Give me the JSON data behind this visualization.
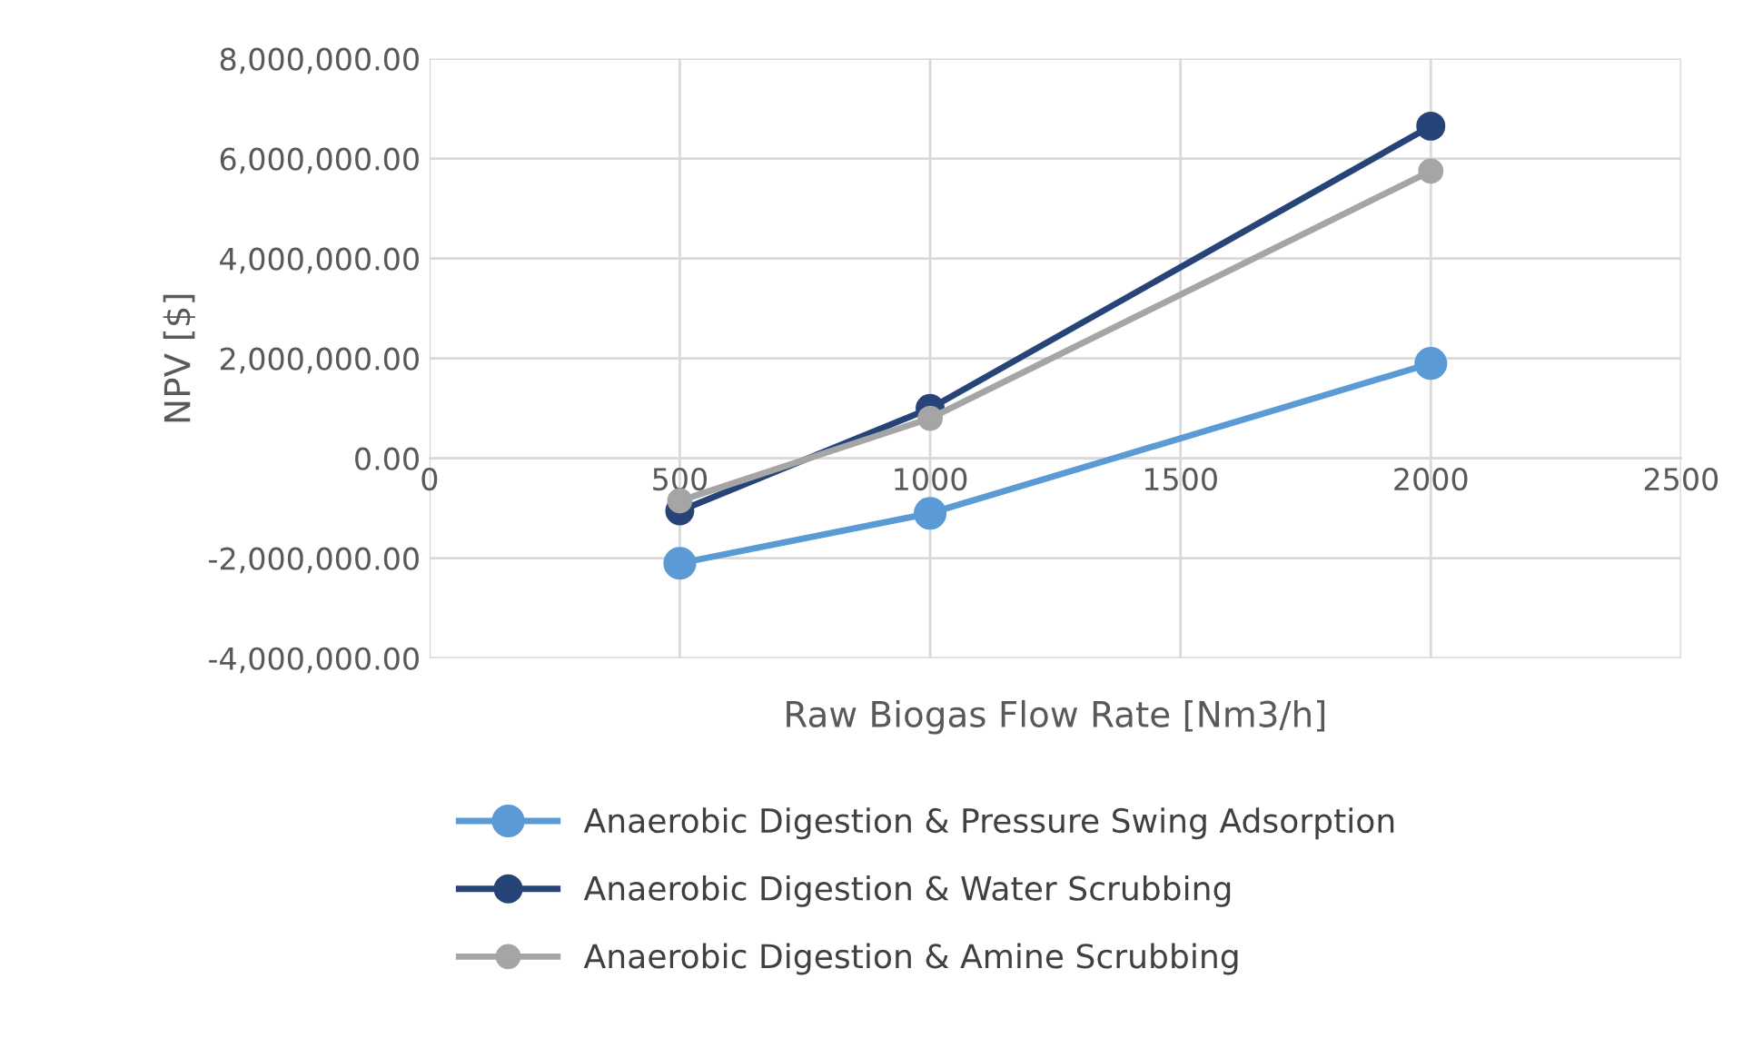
{
  "chart_data": {
    "type": "line",
    "xlabel": "Raw Biogas Flow Rate [Nm3/h]",
    "ylabel": "NPV [$]",
    "x": [
      500,
      1000,
      2000
    ],
    "series": [
      {
        "name": "Anaerobic Digestion & Pressure Swing Adsorption",
        "color": "#5b9bd5",
        "values": [
          -2100000,
          -1100000,
          1900000
        ]
      },
      {
        "name": "Anaerobic Digestion & Water Scrubbing",
        "color": "#264478",
        "values": [
          -1050000,
          1000000,
          6650000
        ]
      },
      {
        "name": "Anaerobic Digestion & Amine Scrubbing",
        "color": "#a5a5a5",
        "values": [
          -850000,
          800000,
          5750000
        ]
      }
    ],
    "xlim": [
      0,
      2500
    ],
    "xticks": [
      0,
      500,
      1000,
      1500,
      2000,
      2500
    ],
    "ylim": [
      -4000000,
      8000000
    ],
    "yticks": [
      {
        "value": -4000000,
        "label": "-4,000,000.00"
      },
      {
        "value": -2000000,
        "label": "-2,000,000.00"
      },
      {
        "value": 0,
        "label": "0.00"
      },
      {
        "value": 2000000,
        "label": "2,000,000.00"
      },
      {
        "value": 4000000,
        "label": "4,000,000.00"
      },
      {
        "value": 6000000,
        "label": "6,000,000.00"
      },
      {
        "value": 8000000,
        "label": "8,000,000.00"
      }
    ],
    "grid": true,
    "legend": "bottom",
    "marker": "circle",
    "line_style": "solid"
  }
}
